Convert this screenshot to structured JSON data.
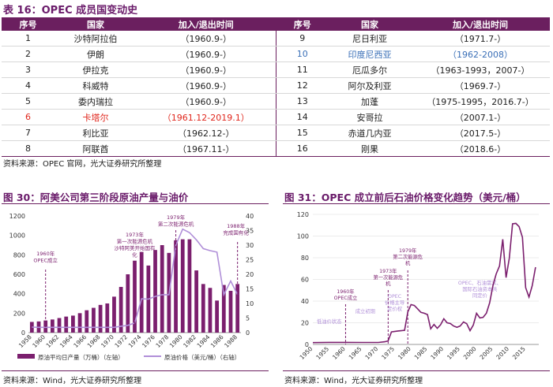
{
  "table": {
    "title": "表 16：OPEC 成员国变动史",
    "headers": [
      "序号",
      "国家",
      "加入/退出时间",
      "序号",
      "国家",
      "加入/退出时间"
    ],
    "left": [
      {
        "no": "1",
        "country": "沙特阿拉伯",
        "time": "（1960.9-）",
        "style": ""
      },
      {
        "no": "2",
        "country": "伊朗",
        "time": "（1960.9-）",
        "style": ""
      },
      {
        "no": "3",
        "country": "伊拉克",
        "time": "（1960.9-）",
        "style": ""
      },
      {
        "no": "4",
        "country": "科威特",
        "time": "（1960.9-）",
        "style": ""
      },
      {
        "no": "5",
        "country": "委内瑞拉",
        "time": "（1960.9-）",
        "style": ""
      },
      {
        "no": "6",
        "country": "卡塔尔",
        "time": "（1961.12-2019.1）",
        "style": "red"
      },
      {
        "no": "7",
        "country": "利比亚",
        "time": "（1962.12-）",
        "style": ""
      },
      {
        "no": "8",
        "country": "阿联酋",
        "time": "（1967.11-）",
        "style": ""
      }
    ],
    "right": [
      {
        "no": "9",
        "country": "尼日利亚",
        "time": "（1971.7-）",
        "style": ""
      },
      {
        "no": "10",
        "country": "印度尼西亚",
        "time": "（1962-2008）",
        "style": "blue"
      },
      {
        "no": "11",
        "country": "厄瓜多尔",
        "time": "（1963-1993，2007-）",
        "style": ""
      },
      {
        "no": "12",
        "country": "阿尔及利亚",
        "time": "（1969.7-）",
        "style": ""
      },
      {
        "no": "13",
        "country": "加蓬",
        "time": "（1975-1995，2016.7-）",
        "style": ""
      },
      {
        "no": "14",
        "country": "安哥拉",
        "time": "（2007.1-）",
        "style": ""
      },
      {
        "no": "15",
        "country": "赤道几内亚",
        "time": "（2017.5-）",
        "style": ""
      },
      {
        "no": "16",
        "country": "刚果",
        "time": "（2018.6-）",
        "style": ""
      }
    ],
    "source": "资料来源：OPEC 官网，光大证券研究所整理"
  },
  "fig30": {
    "title": "图 30：阿美公司第三阶段原油产量与油价",
    "source": "资料来源：Wind，光大证券研究所整理"
  },
  "fig31": {
    "title": "图 31：OPEC 成立前后石油价格变化趋势（美元/桶）",
    "source": "资料来源：Wind，光大证券研究所整理"
  },
  "chart_data": [
    {
      "type": "bar",
      "x": [
        1958,
        1959,
        1960,
        1961,
        1962,
        1963,
        1964,
        1965,
        1966,
        1967,
        1968,
        1969,
        1970,
        1971,
        1972,
        1973,
        1974,
        1975,
        1976,
        1977,
        1978,
        1979,
        1980,
        1981,
        1982,
        1983,
        1984,
        1985,
        1986,
        1987,
        1988
      ],
      "xticks": [
        "1958",
        "1960",
        "1962",
        "1964",
        "1966",
        "1968",
        "1970",
        "1972",
        "1974",
        "1976",
        "1978",
        "1980",
        "1982",
        "1984",
        "1986",
        "1988"
      ],
      "ylim_left": [
        0,
        1200
      ],
      "yticks_left": [
        "0",
        "200",
        "400",
        "600",
        "800",
        "1000",
        "1200"
      ],
      "ylim_right": [
        0,
        40
      ],
      "yticks_right": [
        "0",
        "5",
        "10",
        "15",
        "20",
        "25",
        "30",
        "35",
        "40"
      ],
      "series": [
        {
          "name": "原油平均日产量（万桶）（左轴）",
          "axis": "left",
          "color": "#7b1f6e",
          "values": [
            110,
            115,
            125,
            135,
            150,
            165,
            175,
            200,
            230,
            255,
            285,
            300,
            370,
            470,
            600,
            740,
            830,
            690,
            850,
            900,
            820,
            950,
            960,
            960,
            640,
            500,
            460,
            330,
            490,
            430,
            500
          ]
        },
        {
          "name": "原油价格（美元/桶）（右轴）",
          "axis": "right",
          "color": "#b08fd8",
          "values": [
            1.9,
            1.8,
            1.8,
            1.8,
            1.8,
            1.8,
            1.8,
            1.8,
            1.8,
            1.8,
            1.8,
            1.8,
            1.8,
            2.2,
            2.5,
            3.3,
            11.6,
            11.5,
            12.4,
            13.0,
            13.0,
            30.0,
            35.5,
            34.3,
            31.8,
            28.8,
            28.1,
            27.6,
            13.0,
            17.7,
            13.0
          ]
        }
      ],
      "annotations": [
        {
          "year": 1960,
          "text": [
            "1960年",
            "OPEC成立"
          ]
        },
        {
          "year": 1973,
          "text": [
            "1973年",
            "第一次能源危机",
            "沙特阿美开始国有",
            "化"
          ]
        },
        {
          "year": 1979,
          "text": [
            "1979年",
            "第二次能源危机"
          ]
        },
        {
          "year": 1988,
          "text": [
            "1988年",
            "完成国有化"
          ]
        }
      ]
    },
    {
      "type": "line",
      "xticks": [
        "1950",
        "1955",
        "1960",
        "1965",
        "1970",
        "1975",
        "1980",
        "1985",
        "1990",
        "1995",
        "2000",
        "2005",
        "2010",
        "2015"
      ],
      "xlim": [
        1950,
        2019
      ],
      "ylim": [
        0,
        120
      ],
      "yticks": [
        "0",
        "20",
        "40",
        "60",
        "80",
        "100",
        "120"
      ],
      "series": [
        {
          "name": "",
          "color": "#7b1f6e",
          "points": [
            [
              1950,
              1.7
            ],
            [
              1955,
              1.9
            ],
            [
              1960,
              1.9
            ],
            [
              1965,
              1.8
            ],
            [
              1970,
              1.8
            ],
            [
              1972,
              2.5
            ],
            [
              1973,
              3.3
            ],
            [
              1974,
              11.6
            ],
            [
              1976,
              12.4
            ],
            [
              1978,
              13.0
            ],
            [
              1979,
              30.0
            ],
            [
              1980,
              36.8
            ],
            [
              1981,
              35.9
            ],
            [
              1982,
              32.9
            ],
            [
              1983,
              29.6
            ],
            [
              1984,
              28.8
            ],
            [
              1985,
              27.6
            ],
            [
              1986,
              14.4
            ],
            [
              1987,
              18.4
            ],
            [
              1988,
              14.9
            ],
            [
              1989,
              18.2
            ],
            [
              1990,
              23.7
            ],
            [
              1991,
              20.0
            ],
            [
              1992,
              19.3
            ],
            [
              1993,
              17.0
            ],
            [
              1994,
              15.8
            ],
            [
              1995,
              17.0
            ],
            [
              1996,
              20.7
            ],
            [
              1997,
              19.1
            ],
            [
              1998,
              12.7
            ],
            [
              1999,
              17.9
            ],
            [
              2000,
              28.7
            ],
            [
              2001,
              24.4
            ],
            [
              2002,
              25.0
            ],
            [
              2003,
              28.8
            ],
            [
              2004,
              38.3
            ],
            [
              2005,
              54.5
            ],
            [
              2006,
              65.1
            ],
            [
              2007,
              72.4
            ],
            [
              2008,
              97.0
            ],
            [
              2009,
              61.7
            ],
            [
              2010,
              79.6
            ],
            [
              2011,
              111.3
            ],
            [
              2012,
              111.7
            ],
            [
              2013,
              108.7
            ],
            [
              2014,
              98.9
            ],
            [
              2015,
              52.4
            ],
            [
              2016,
              43.7
            ],
            [
              2017,
              54.2
            ],
            [
              2018,
              71.3
            ]
          ]
        }
      ],
      "annotations": [
        {
          "year": 1960,
          "text": [
            "1960年",
            "OPEC成立"
          ]
        },
        {
          "year": 1973,
          "text": [
            "1973年",
            "第一次能源危",
            "机"
          ]
        },
        {
          "year": 1979,
          "text": [
            "1979年",
            "第二次能源危",
            "机"
          ]
        },
        {
          "year": 1975,
          "text": [
            "OPEC",
            "价格主导",
            "定价权"
          ]
        },
        {
          "year": 1955,
          "text": [
            "低油价状态"
          ]
        },
        {
          "year": 1965,
          "text": [
            "成立初期"
          ]
        },
        {
          "year": 2000,
          "text": [
            "OPEC、石油需求、",
            "国际石油资本共",
            "同定价"
          ]
        }
      ]
    }
  ]
}
